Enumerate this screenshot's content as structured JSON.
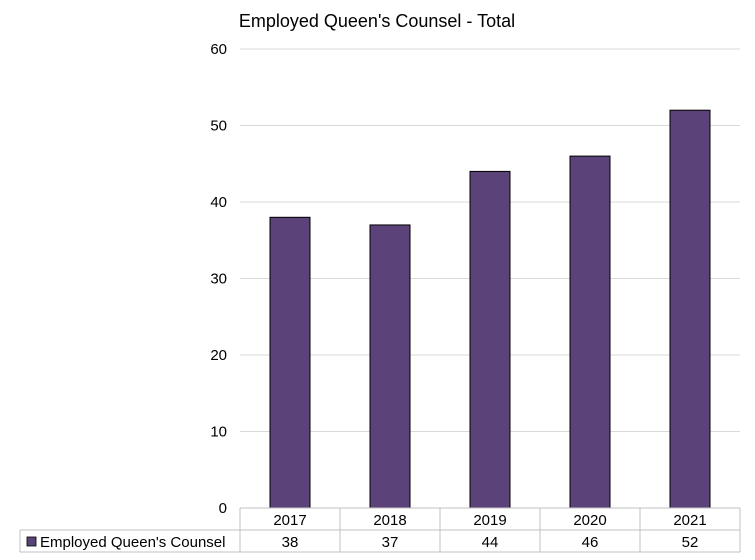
{
  "chart_data": {
    "type": "bar",
    "title": "Employed Queen's Counsel - Total",
    "categories": [
      "2017",
      "2018",
      "2019",
      "2020",
      "2021"
    ],
    "series": [
      {
        "name": "Employed Queen's Counsel",
        "values": [
          38,
          37,
          44,
          46,
          52
        ],
        "color": "#5b4279"
      }
    ],
    "ylim": [
      0,
      60
    ],
    "yticks": [
      0,
      10,
      20,
      30,
      40,
      50,
      60
    ],
    "grid": true,
    "legend": "data-table-below",
    "data_table": true
  }
}
